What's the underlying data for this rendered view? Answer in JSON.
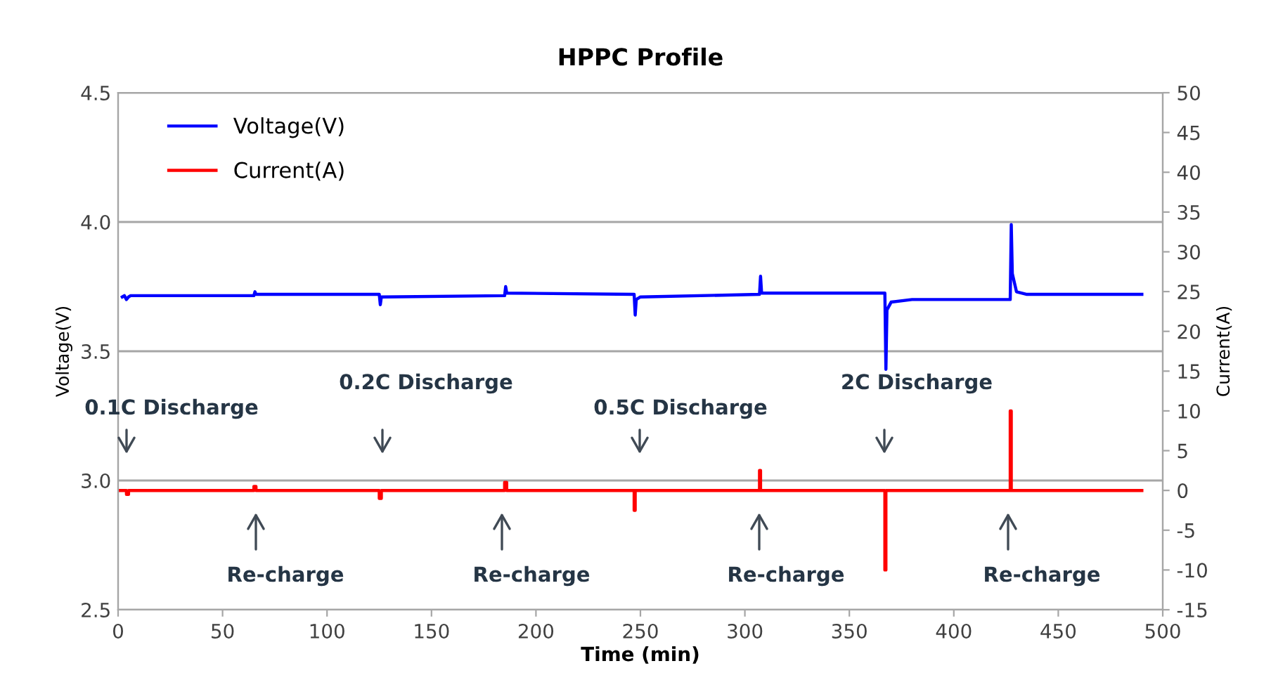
{
  "chart_data": {
    "type": "line",
    "title": "HPPC Profile",
    "xlabel": "Time (min)",
    "ylabel": "Voltage(V)",
    "y2label": "Current(A)",
    "xlim": [
      0,
      500
    ],
    "xticks": [
      0,
      50,
      100,
      150,
      200,
      250,
      300,
      350,
      400,
      450,
      500
    ],
    "ylim": [
      2.5,
      4.5
    ],
    "yticks": [
      {
        "value": 2.5,
        "label": "2.5"
      },
      {
        "value": 3.0,
        "label": "3.0"
      },
      {
        "value": 3.5,
        "label": "3.5"
      },
      {
        "value": 4.0,
        "label": "4.0"
      },
      {
        "value": 4.5,
        "label": "4.5"
      }
    ],
    "y2lim": [
      -15,
      50
    ],
    "y2ticks": [
      -15,
      -10,
      -5,
      0,
      5,
      10,
      15,
      20,
      25,
      30,
      35,
      40,
      45,
      50
    ],
    "grid": "y",
    "legend": "top left",
    "marker": "none",
    "line_style": "solid",
    "series": [
      {
        "name": "Voltage(V)",
        "color": "#0000ff",
        "x": [
          2,
          3,
          4,
          5,
          6,
          65,
          65.5,
          66,
          125,
          125.5,
          126,
          185,
          185.5,
          186,
          247,
          247.5,
          248,
          250,
          307,
          307.5,
          308,
          367,
          367.5,
          368,
          370,
          380,
          427,
          427.5,
          428,
          430,
          435,
          490
        ],
        "values": [
          3.71,
          3.715,
          3.7,
          3.71,
          3.715,
          3.715,
          3.73,
          3.72,
          3.72,
          3.68,
          3.71,
          3.715,
          3.75,
          3.725,
          3.72,
          3.64,
          3.7,
          3.71,
          3.72,
          3.79,
          3.725,
          3.725,
          3.43,
          3.66,
          3.69,
          3.7,
          3.7,
          3.99,
          3.8,
          3.73,
          3.72,
          3.72
        ]
      },
      {
        "name": "Current(A)",
        "color": "#ff0000",
        "axis": "y2",
        "x": [
          1,
          4,
          4,
          5,
          5,
          65,
          65,
          66,
          66,
          125,
          125,
          126,
          126,
          185,
          185,
          186,
          186,
          247,
          247,
          247.5,
          247.5,
          307,
          307,
          307.5,
          307.5,
          367,
          367,
          367.5,
          367.5,
          427,
          427,
          427.5,
          427.5,
          490
        ],
        "values": [
          0,
          0,
          -0.5,
          -0.5,
          0,
          0,
          0.5,
          0.5,
          0,
          0,
          -1,
          -1,
          0,
          0,
          1,
          1,
          0,
          0,
          -2.5,
          -2.5,
          0,
          0,
          2.5,
          2.5,
          0,
          0,
          -10,
          -10,
          0,
          0,
          10,
          10,
          0,
          0
        ]
      }
    ],
    "annotations": [
      "0.1C Discharge",
      "Re-charge",
      "0.2C Discharge",
      "Re-charge",
      "0.5C Discharge",
      "Re-charge",
      "2C Discharge",
      "Re-charge"
    ]
  }
}
